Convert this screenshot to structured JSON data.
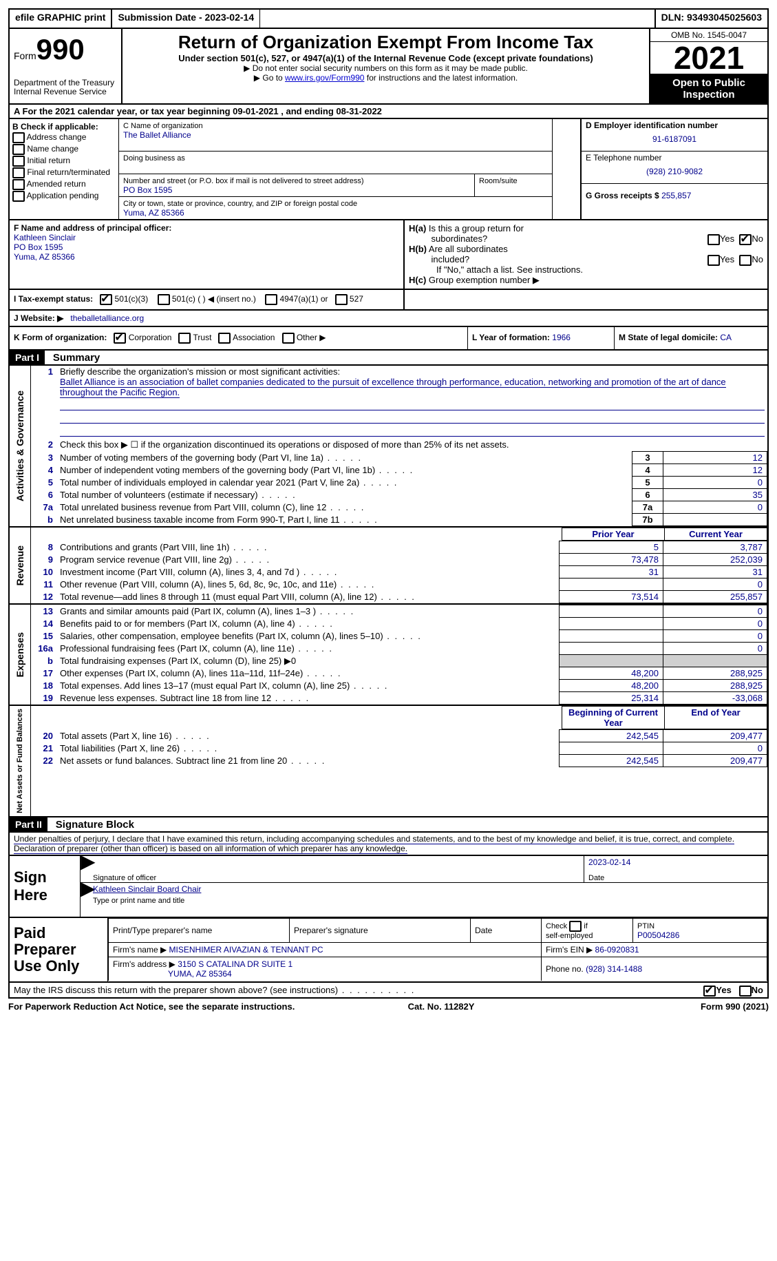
{
  "topbar": {
    "efile": "efile GRAPHIC print",
    "submission": "Submission Date - 2023-02-14",
    "dln": "DLN: 93493045025603"
  },
  "header": {
    "form_prefix": "Form",
    "form_num": "990",
    "title": "Return of Organization Exempt From Income Tax",
    "subtitle": "Under section 501(c), 527, or 4947(a)(1) of the Internal Revenue Code (except private foundations)",
    "note1": "▶ Do not enter social security numbers on this form as it may be made public.",
    "note2_pre": "▶ Go to ",
    "note2_link": "www.irs.gov/Form990",
    "note2_post": " for instructions and the latest information.",
    "dept": "Department of the Treasury",
    "irs": "Internal Revenue Service",
    "omb": "OMB No. 1545-0047",
    "year": "2021",
    "inspection": "Open to Public Inspection"
  },
  "line_a": "A For the 2021 calendar year, or tax year beginning 09-01-2021    , and ending 08-31-2022",
  "section_b": {
    "header": "B Check if applicable:",
    "opts": [
      "Address change",
      "Name change",
      "Initial return",
      "Final return/terminated",
      "Amended return",
      "Application pending"
    ]
  },
  "section_c": {
    "label_name": "C Name of organization",
    "org_name": "The Ballet Alliance",
    "dba_label": "Doing business as",
    "addr_label": "Number and street (or P.O. box if mail is not delivered to street address)",
    "room_label": "Room/suite",
    "address": "PO Box 1595",
    "city_label": "City or town, state or province, country, and ZIP or foreign postal code",
    "city": "Yuma, AZ  85366"
  },
  "section_d": {
    "label": "D Employer identification number",
    "value": "91-6187091"
  },
  "section_e": {
    "label": "E Telephone number",
    "value": "(928) 210-9082"
  },
  "section_g": {
    "label": "G Gross receipts $",
    "value": "255,857"
  },
  "section_f": {
    "label": "F  Name and address of principal officer:",
    "name": "Kathleen Sinclair",
    "addr": "PO Box 1595",
    "city": "Yuma, AZ  85366"
  },
  "section_h": {
    "a_label": "H(a)  Is this a group return for subordinates?",
    "b_label": "H(b)  Are all subordinates included?",
    "note": "If \"No,\" attach a list. See instructions.",
    "c_label": "H(c)  Group exemption number ▶",
    "yes": "Yes",
    "no": "No"
  },
  "section_i": {
    "label": "I     Tax-exempt status:",
    "opt1": "501(c)(3)",
    "opt2": "501(c) (  ) ◀ (insert no.)",
    "opt3": "4947(a)(1) or",
    "opt4": "527"
  },
  "section_j": {
    "label": "J    Website: ▶",
    "value": "theballetalliance.org"
  },
  "section_k": {
    "label": "K Form of organization:",
    "opts": [
      "Corporation",
      "Trust",
      "Association",
      "Other ▶"
    ]
  },
  "section_l": {
    "label": "L Year of formation:",
    "value": "1966"
  },
  "section_m": {
    "label": "M State of legal domicile:",
    "value": "CA"
  },
  "part1": {
    "header": "Part I",
    "title": "Summary",
    "l1_label": "Briefly describe the organization's mission or most significant activities:",
    "l1_text": "Ballet Alliance is an association of ballet companies dedicated to the pursuit of excellence through performance, education, networking and promotion of the art of dance throughout the Pacific Region.",
    "l2": "Check this box ▶ ☐  if the organization discontinued its operations or disposed of more than 25% of its net assets.",
    "lines_gov": [
      {
        "n": "3",
        "t": "Number of voting members of the governing body (Part VI, line 1a)",
        "box": "3",
        "v": "12"
      },
      {
        "n": "4",
        "t": "Number of independent voting members of the governing body (Part VI, line 1b)",
        "box": "4",
        "v": "12"
      },
      {
        "n": "5",
        "t": "Total number of individuals employed in calendar year 2021 (Part V, line 2a)",
        "box": "5",
        "v": "0"
      },
      {
        "n": "6",
        "t": "Total number of volunteers (estimate if necessary)",
        "box": "6",
        "v": "35"
      },
      {
        "n": "7a",
        "t": "Total unrelated business revenue from Part VIII, column (C), line 12",
        "box": "7a",
        "v": "0"
      },
      {
        "n": "b",
        "t": "Net unrelated business taxable income from Form 990-T, Part I, line 11",
        "box": "7b",
        "v": ""
      }
    ],
    "col_prior": "Prior Year",
    "col_current": "Current Year",
    "revenue": [
      {
        "n": "8",
        "t": "Contributions and grants (Part VIII, line 1h)",
        "p": "5",
        "c": "3,787"
      },
      {
        "n": "9",
        "t": "Program service revenue (Part VIII, line 2g)",
        "p": "73,478",
        "c": "252,039"
      },
      {
        "n": "10",
        "t": "Investment income (Part VIII, column (A), lines 3, 4, and 7d )",
        "p": "31",
        "c": "31"
      },
      {
        "n": "11",
        "t": "Other revenue (Part VIII, column (A), lines 5, 6d, 8c, 9c, 10c, and 11e)",
        "p": "",
        "c": "0"
      },
      {
        "n": "12",
        "t": "Total revenue—add lines 8 through 11 (must equal Part VIII, column (A), line 12)",
        "p": "73,514",
        "c": "255,857"
      }
    ],
    "expenses": [
      {
        "n": "13",
        "t": "Grants and similar amounts paid (Part IX, column (A), lines 1–3 )",
        "p": "",
        "c": "0"
      },
      {
        "n": "14",
        "t": "Benefits paid to or for members (Part IX, column (A), line 4)",
        "p": "",
        "c": "0"
      },
      {
        "n": "15",
        "t": "Salaries, other compensation, employee benefits (Part IX, column (A), lines 5–10)",
        "p": "",
        "c": "0"
      },
      {
        "n": "16a",
        "t": "Professional fundraising fees (Part IX, column (A), line 11e)",
        "p": "",
        "c": "0"
      },
      {
        "n": "b",
        "t": "Total fundraising expenses (Part IX, column (D), line 25) ▶0",
        "p": "grey",
        "c": "grey"
      },
      {
        "n": "17",
        "t": "Other expenses (Part IX, column (A), lines 11a–11d, 11f–24e)",
        "p": "48,200",
        "c": "288,925"
      },
      {
        "n": "18",
        "t": "Total expenses. Add lines 13–17 (must equal Part IX, column (A), line 25)",
        "p": "48,200",
        "c": "288,925"
      },
      {
        "n": "19",
        "t": "Revenue less expenses. Subtract line 18 from line 12",
        "p": "25,314",
        "c": "-33,068"
      }
    ],
    "col_begin": "Beginning of Current Year",
    "col_end": "End of Year",
    "netassets": [
      {
        "n": "20",
        "t": "Total assets (Part X, line 16)",
        "p": "242,545",
        "c": "209,477"
      },
      {
        "n": "21",
        "t": "Total liabilities (Part X, line 26)",
        "p": "",
        "c": "0"
      },
      {
        "n": "22",
        "t": "Net assets or fund balances. Subtract line 21 from line 20",
        "p": "242,545",
        "c": "209,477"
      }
    ],
    "side_gov": "Activities & Governance",
    "side_rev": "Revenue",
    "side_exp": "Expenses",
    "side_net": "Net Assets or Fund Balances"
  },
  "part2": {
    "header": "Part II",
    "title": "Signature Block",
    "declaration": "Under penalties of perjury, I declare that I have examined this return, including accompanying schedules and statements, and to the best of my knowledge and belief, it is true, correct, and complete. Declaration of preparer (other than officer) is based on all information of which preparer has any knowledge."
  },
  "sign": {
    "label": "Sign Here",
    "sig_label": "Signature of officer",
    "date_label": "Date",
    "date": "2023-02-14",
    "name": "Kathleen Sinclair  Board Chair",
    "name_label": "Type or print name and title"
  },
  "preparer": {
    "label": "Paid Preparer Use Only",
    "h1": "Print/Type preparer's name",
    "h2": "Preparer's signature",
    "h3": "Date",
    "h4_pre": "Check ☐ if self-employed",
    "h5": "PTIN",
    "ptin": "P00504286",
    "firm_label": "Firm's name   ▶",
    "firm": "MISENHIMER AIVAZIAN & TENNANT PC",
    "ein_label": "Firm's EIN ▶",
    "ein": "86-0920831",
    "addr_label": "Firm's address ▶",
    "addr1": "3150 S CATALINA DR SUITE 1",
    "addr2": "YUMA, AZ  85364",
    "phone_label": "Phone no.",
    "phone": "(928) 314-1488"
  },
  "discuss": {
    "text": "May the IRS discuss this return with the preparer shown above? (see instructions)",
    "yes": "Yes",
    "no": "No"
  },
  "footer": {
    "left": "For Paperwork Reduction Act Notice, see the separate instructions.",
    "mid": "Cat. No. 11282Y",
    "right": "Form 990 (2021)"
  }
}
